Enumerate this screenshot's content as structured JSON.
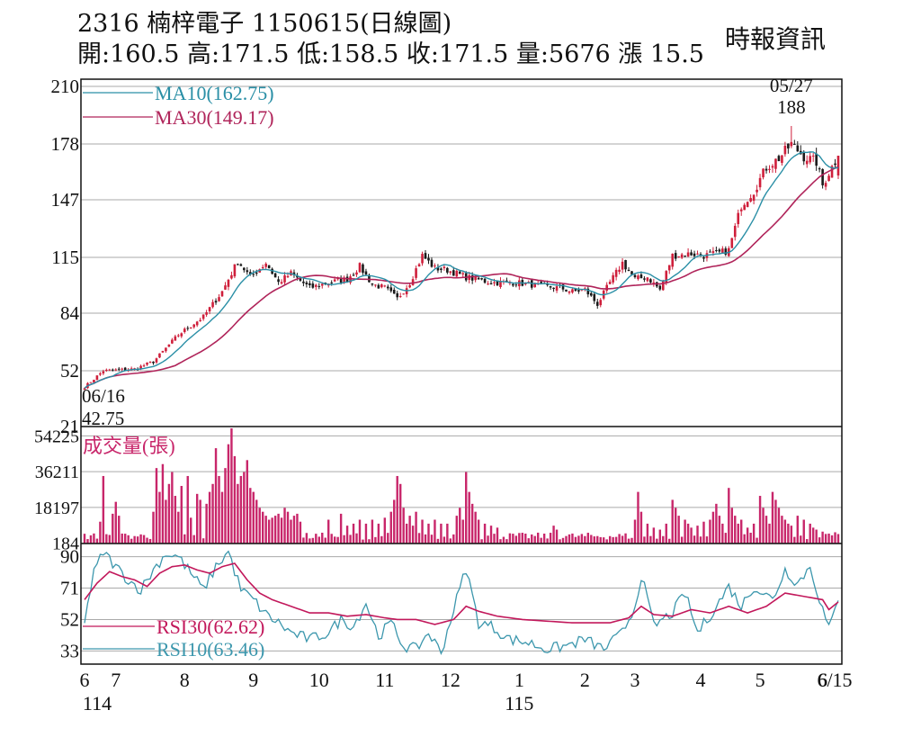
{
  "header": {
    "title": "2316  楠梓電子 1150615(日線圖)",
    "ohlc": "開:160.5 高:171.5 低:158.5 收:171.5 量:5676 漲 15.5",
    "source": "時報資訊"
  },
  "colors": {
    "ma10": "#2a8fa6",
    "ma30": "#b0245a",
    "up": "#cf1f3b",
    "down": "#1a1a1a",
    "volume": "#c8266a",
    "rsi30": "#c2185b",
    "rsi10": "#3c97ad",
    "grid": "#aaaaaa"
  },
  "chart_data": [
    {
      "type": "candlestick",
      "panel": "price",
      "yticks": [
        21,
        52,
        84,
        115,
        147,
        178,
        210
      ],
      "ylim": [
        21,
        210
      ],
      "legend": [
        {
          "name": "MA10(162.75)",
          "key": "ma10"
        },
        {
          "name": "MA30(149.17)",
          "key": "ma30"
        }
      ],
      "annotations": [
        {
          "date": "06/16",
          "label_line1": "06/16",
          "label_line2": "42.75",
          "value": 42.75
        },
        {
          "date": "05/27",
          "label_line1": "05/27",
          "label_line2": "188",
          "value": 188
        }
      ],
      "last": {
        "open": 160.5,
        "high": 171.5,
        "low": 158.5,
        "close": 171.5,
        "volume": 5676,
        "change": 15.5
      },
      "anchor_closes": [
        [
          0,
          43
        ],
        [
          6,
          52
        ],
        [
          16,
          53
        ],
        [
          22,
          57
        ],
        [
          30,
          72
        ],
        [
          38,
          82
        ],
        [
          44,
          96
        ],
        [
          49,
          113
        ],
        [
          53,
          104
        ],
        [
          58,
          112
        ],
        [
          62,
          101
        ],
        [
          66,
          106
        ],
        [
          72,
          98
        ],
        [
          78,
          101
        ],
        [
          84,
          103
        ],
        [
          88,
          110
        ],
        [
          92,
          100
        ],
        [
          96,
          98
        ],
        [
          100,
          92
        ],
        [
          104,
          101
        ],
        [
          108,
          116
        ],
        [
          112,
          109
        ],
        [
          116,
          108
        ],
        [
          122,
          104
        ],
        [
          130,
          101
        ],
        [
          138,
          101
        ],
        [
          146,
          99
        ],
        [
          152,
          98
        ],
        [
          156,
          96
        ],
        [
          160,
          97
        ],
        [
          164,
          89
        ],
        [
          168,
          101
        ],
        [
          172,
          112
        ],
        [
          176,
          103
        ],
        [
          180,
          104
        ],
        [
          184,
          97
        ],
        [
          188,
          116
        ],
        [
          194,
          117
        ],
        [
          198,
          116
        ],
        [
          202,
          117
        ],
        [
          206,
          119
        ],
        [
          210,
          144
        ],
        [
          214,
          152
        ],
        [
          218,
          165
        ],
        [
          222,
          170
        ],
        [
          226,
          178
        ],
        [
          230,
          171
        ],
        [
          234,
          168
        ],
        [
          236,
          155
        ],
        [
          238,
          162
        ],
        [
          241,
          171.5
        ]
      ]
    },
    {
      "type": "bar",
      "panel": "volume",
      "title": "成交量(張)",
      "yticks": [
        184,
        18197,
        36211,
        54225
      ],
      "ylim": [
        0,
        58000
      ],
      "spikes": [
        [
          5,
          11000
        ],
        [
          6,
          34000
        ],
        [
          9,
          15000
        ],
        [
          10,
          21000
        ],
        [
          11,
          14000
        ],
        [
          22,
          16000
        ],
        [
          23,
          38000
        ],
        [
          24,
          26000
        ],
        [
          25,
          40000
        ],
        [
          26,
          22000
        ],
        [
          27,
          30000
        ],
        [
          28,
          36000
        ],
        [
          29,
          24000
        ],
        [
          30,
          16000
        ],
        [
          31,
          29000
        ],
        [
          33,
          34000
        ],
        [
          34,
          13000
        ],
        [
          36,
          25000
        ],
        [
          37,
          22000
        ],
        [
          39,
          20000
        ],
        [
          40,
          26000
        ],
        [
          41,
          30000
        ],
        [
          42,
          48000
        ],
        [
          43,
          34000
        ],
        [
          44,
          26000
        ],
        [
          45,
          38000
        ],
        [
          46,
          50000
        ],
        [
          47,
          58000
        ],
        [
          48,
          44000
        ],
        [
          49,
          30000
        ],
        [
          50,
          34000
        ],
        [
          51,
          36000
        ],
        [
          52,
          42000
        ],
        [
          53,
          28000
        ],
        [
          54,
          26000
        ],
        [
          55,
          22000
        ],
        [
          56,
          18000
        ],
        [
          57,
          16000
        ],
        [
          58,
          14000
        ],
        [
          59,
          12000
        ],
        [
          60,
          13000
        ],
        [
          61,
          14000
        ],
        [
          62,
          15000
        ],
        [
          63,
          13000
        ],
        [
          64,
          18000
        ],
        [
          65,
          16000
        ],
        [
          66,
          12000
        ],
        [
          67,
          14000
        ],
        [
          68,
          15000
        ],
        [
          69,
          11000
        ],
        [
          78,
          12000
        ],
        [
          82,
          15000
        ],
        [
          84,
          9000
        ],
        [
          86,
          10000
        ],
        [
          88,
          12000
        ],
        [
          90,
          10000
        ],
        [
          92,
          12000
        ],
        [
          94,
          10000
        ],
        [
          96,
          13000
        ],
        [
          98,
          16000
        ],
        [
          99,
          22000
        ],
        [
          100,
          34000
        ],
        [
          101,
          30000
        ],
        [
          102,
          18000
        ],
        [
          103,
          10000
        ],
        [
          104,
          14000
        ],
        [
          105,
          9000
        ],
        [
          106,
          16000
        ],
        [
          108,
          12000
        ],
        [
          110,
          10000
        ],
        [
          112,
          12000
        ],
        [
          114,
          10000
        ],
        [
          116,
          10000
        ],
        [
          119,
          14000
        ],
        [
          120,
          18000
        ],
        [
          121,
          12000
        ],
        [
          122,
          36000
        ],
        [
          123,
          26000
        ],
        [
          124,
          20000
        ],
        [
          125,
          16000
        ],
        [
          126,
          12000
        ],
        [
          128,
          10000
        ],
        [
          130,
          9000
        ],
        [
          132,
          8000
        ],
        [
          150,
          9000
        ],
        [
          151,
          7000
        ],
        [
          176,
          12000
        ],
        [
          177,
          26000
        ],
        [
          178,
          16000
        ],
        [
          180,
          10000
        ],
        [
          182,
          8000
        ],
        [
          184,
          7000
        ],
        [
          186,
          10000
        ],
        [
          188,
          22000
        ],
        [
          189,
          18000
        ],
        [
          190,
          14000
        ],
        [
          192,
          12000
        ],
        [
          193,
          10000
        ],
        [
          194,
          8000
        ],
        [
          196,
          9000
        ],
        [
          198,
          11000
        ],
        [
          200,
          12000
        ],
        [
          201,
          16000
        ],
        [
          202,
          20000
        ],
        [
          203,
          14000
        ],
        [
          204,
          10000
        ],
        [
          206,
          28000
        ],
        [
          207,
          18000
        ],
        [
          208,
          14000
        ],
        [
          209,
          10000
        ],
        [
          210,
          12000
        ],
        [
          212,
          8000
        ],
        [
          214,
          10000
        ],
        [
          216,
          24000
        ],
        [
          217,
          18000
        ],
        [
          218,
          14000
        ],
        [
          219,
          10000
        ],
        [
          220,
          26000
        ],
        [
          221,
          22000
        ],
        [
          222,
          18000
        ],
        [
          223,
          14000
        ],
        [
          224,
          12000
        ],
        [
          225,
          10000
        ],
        [
          226,
          9000
        ],
        [
          228,
          14000
        ],
        [
          230,
          12000
        ],
        [
          232,
          10000
        ],
        [
          233,
          8000
        ],
        [
          234,
          7000
        ],
        [
          236,
          6000
        ],
        [
          238,
          5000
        ],
        [
          240,
          5676
        ]
      ]
    },
    {
      "type": "line",
      "panel": "rsi",
      "yticks": [
        33,
        52,
        71,
        90
      ],
      "ylim": [
        25,
        98
      ],
      "series": [
        {
          "name": "RSI30(62.62)",
          "key": "rsi30",
          "anchors": [
            [
              0,
              64
            ],
            [
              4,
              74
            ],
            [
              8,
              81
            ],
            [
              12,
              78
            ],
            [
              16,
              76
            ],
            [
              20,
              72
            ],
            [
              24,
              80
            ],
            [
              28,
              84
            ],
            [
              32,
              85
            ],
            [
              36,
              82
            ],
            [
              40,
              80
            ],
            [
              44,
              84
            ],
            [
              48,
              86
            ],
            [
              52,
              76
            ],
            [
              56,
              68
            ],
            [
              60,
              64
            ],
            [
              66,
              60
            ],
            [
              72,
              56
            ],
            [
              78,
              56
            ],
            [
              84,
              54
            ],
            [
              90,
              55
            ],
            [
              96,
              53
            ],
            [
              100,
              52
            ],
            [
              106,
              52
            ],
            [
              112,
              49
            ],
            [
              118,
              52
            ],
            [
              122,
              60
            ],
            [
              126,
              57
            ],
            [
              132,
              54
            ],
            [
              140,
              52
            ],
            [
              148,
              51
            ],
            [
              156,
              50
            ],
            [
              162,
              50
            ],
            [
              168,
              50
            ],
            [
              174,
              53
            ],
            [
              178,
              60
            ],
            [
              182,
              55
            ],
            [
              188,
              54
            ],
            [
              194,
              58
            ],
            [
              200,
              56
            ],
            [
              206,
              60
            ],
            [
              212,
              56
            ],
            [
              218,
              60
            ],
            [
              224,
              68
            ],
            [
              230,
              66
            ],
            [
              236,
              64
            ],
            [
              238,
              58
            ],
            [
              241,
              62.62
            ]
          ]
        },
        {
          "name": "RSI10(63.46)",
          "key": "rsi10",
          "anchors": [
            [
              0,
              52
            ],
            [
              3,
              80
            ],
            [
              6,
              93
            ],
            [
              10,
              84
            ],
            [
              14,
              76
            ],
            [
              18,
              70
            ],
            [
              22,
              82
            ],
            [
              26,
              92
            ],
            [
              30,
              90
            ],
            [
              34,
              80
            ],
            [
              38,
              70
            ],
            [
              42,
              84
            ],
            [
              46,
              93
            ],
            [
              50,
              70
            ],
            [
              54,
              64
            ],
            [
              58,
              55
            ],
            [
              62,
              50
            ],
            [
              66,
              44
            ],
            [
              72,
              40
            ],
            [
              78,
              44
            ],
            [
              82,
              52
            ],
            [
              86,
              48
            ],
            [
              90,
              62
            ],
            [
              94,
              42
            ],
            [
              98,
              50
            ],
            [
              102,
              36
            ],
            [
              106,
              34
            ],
            [
              110,
              44
            ],
            [
              114,
              32
            ],
            [
              118,
              58
            ],
            [
              122,
              83
            ],
            [
              126,
              50
            ],
            [
              130,
              48
            ],
            [
              136,
              40
            ],
            [
              142,
              38
            ],
            [
              148,
              34
            ],
            [
              154,
              36
            ],
            [
              160,
              40
            ],
            [
              166,
              34
            ],
            [
              172,
              44
            ],
            [
              176,
              60
            ],
            [
              178,
              79
            ],
            [
              182,
              48
            ],
            [
              188,
              56
            ],
            [
              192,
              68
            ],
            [
              196,
              44
            ],
            [
              202,
              60
            ],
            [
              206,
              72
            ],
            [
              210,
              60
            ],
            [
              214,
              72
            ],
            [
              220,
              64
            ],
            [
              224,
              82
            ],
            [
              228,
              74
            ],
            [
              232,
              84
            ],
            [
              236,
              58
            ],
            [
              238,
              46
            ],
            [
              241,
              63.46
            ]
          ]
        }
      ]
    }
  ],
  "xaxis": {
    "month_labels": [
      {
        "label": "6",
        "index": 0
      },
      {
        "label": "7",
        "index": 10
      },
      {
        "label": "8",
        "index": 32
      },
      {
        "label": "9",
        "index": 54
      },
      {
        "label": "10",
        "index": 75
      },
      {
        "label": "11",
        "index": 96
      },
      {
        "label": "12",
        "index": 117
      },
      {
        "label": "1",
        "index": 139
      },
      {
        "label": "2",
        "index": 160
      },
      {
        "label": "3",
        "index": 176
      },
      {
        "label": "4",
        "index": 197
      },
      {
        "label": "5",
        "index": 216
      },
      {
        "label": "6",
        "index": 236
      },
      {
        "label": "6/15",
        "index": 241
      }
    ],
    "year_labels": [
      {
        "label": "114",
        "index": 0
      },
      {
        "label": "115",
        "index": 139
      }
    ],
    "count": 242
  }
}
